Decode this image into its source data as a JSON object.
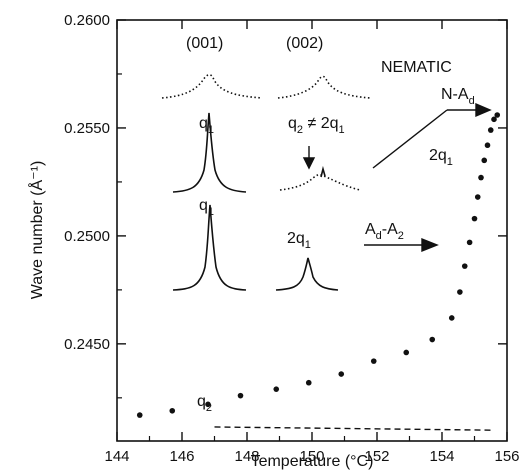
{
  "chart_data": {
    "type": "scatter",
    "xlabel": "Temperature (°C)",
    "ylabel": "Wave number (Å⁻¹)",
    "xlim": [
      144,
      156
    ],
    "ylim": [
      0.2405,
      0.26
    ],
    "xticks": [
      "144",
      "146",
      "148",
      "150",
      "152",
      "154",
      "156"
    ],
    "xtick_values": [
      144,
      146,
      148,
      150,
      152,
      154,
      156
    ],
    "yticks": [
      "0.2450",
      "0.2500",
      "0.2550",
      "0.2600"
    ],
    "ytick_values": [
      0.245,
      0.25,
      0.255,
      0.26
    ],
    "grid": false,
    "series": [
      {
        "label": "2q1",
        "style": "dots",
        "x": [
          144.7,
          145.7,
          146.8,
          147.8,
          148.9,
          149.9,
          150.9,
          151.9,
          152.9,
          153.7,
          154.3,
          154.55,
          154.7,
          154.85,
          155.0,
          155.1,
          155.2,
          155.3,
          155.4,
          155.5,
          155.6,
          155.7
        ],
        "y": [
          0.2417,
          0.2419,
          0.2422,
          0.2426,
          0.2429,
          0.2432,
          0.2436,
          0.2442,
          0.2446,
          0.2452,
          0.2462,
          0.2474,
          0.2486,
          0.2497,
          0.2508,
          0.2518,
          0.2527,
          0.2535,
          0.2542,
          0.2549,
          0.2554,
          0.2556
        ]
      },
      {
        "label": "q2",
        "style": "dashed",
        "x": [
          147.0,
          155.6
        ],
        "y": [
          0.24115,
          0.241
        ]
      }
    ],
    "annotations": {
      "header_001": "(001)",
      "header_002": "(002)",
      "nematic": "NEMATIC",
      "q1_upper": "q",
      "q1_upper_sub": "1",
      "q1_lower": "q",
      "q1_lower_sub": "1",
      "q2_neq_main": "q",
      "q2_neq_sub2": "2",
      "q2_neq_rel": " ≠ 2q",
      "q2_neq_sub1": "1",
      "two_q1_peak": "2q",
      "two_q1_peak_sub": "1",
      "two_q1_series": "2q",
      "two_q1_series_sub": "1",
      "na_label": "N-A",
      "na_sub": "d",
      "ad_a2_label": "A",
      "ad_a2_sub1": "d",
      "ad_a2_mid": "-A",
      "ad_a2_sub2": "2",
      "q2_line_label": "q",
      "q2_line_sub": "2"
    }
  }
}
